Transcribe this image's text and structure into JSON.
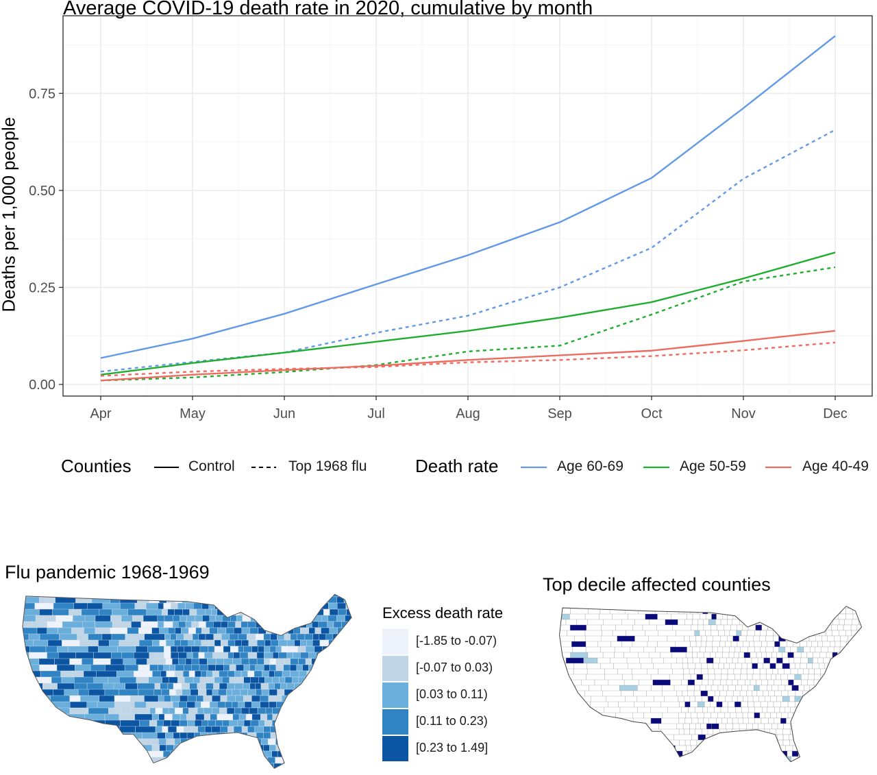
{
  "chart_data": [
    {
      "type": "line",
      "title": "Average COVID-19 death rate in 2020, cumulative by month",
      "xlabel": "",
      "ylabel": "Deaths per 1,000 people",
      "categories": [
        "Apr",
        "May",
        "Jun",
        "Jul",
        "Aug",
        "Sep",
        "Oct",
        "Nov",
        "Dec"
      ],
      "ylim": [
        -0.03,
        0.95
      ],
      "yticks": [
        0.0,
        0.25,
        0.5,
        0.75
      ],
      "ytick_labels": [
        "0.00",
        "0.25",
        "0.50",
        "0.75"
      ],
      "grid": true,
      "legend_position": "bottom",
      "legend": {
        "linetype_title": "Counties",
        "linetype_entries": [
          {
            "label": "Control",
            "dash": "solid"
          },
          {
            "label": "Top 1968 flu",
            "dash": "dashed"
          }
        ],
        "color_title": "Death rate",
        "color_entries": [
          {
            "label": "Age 60-69",
            "color": "#6199e8"
          },
          {
            "label": "Age 50-59",
            "color": "#1fad2d"
          },
          {
            "label": "Age 40-49",
            "color": "#ee6b60"
          }
        ]
      },
      "series": [
        {
          "age": "Age 60-69",
          "counties": "Control",
          "color": "#6199e8",
          "dash": "solid",
          "values": [
            0.068,
            0.118,
            0.182,
            0.258,
            0.333,
            0.418,
            0.532,
            0.712,
            0.898
          ]
        },
        {
          "age": "Age 60-69",
          "counties": "Top 1968 flu",
          "color": "#6199e8",
          "dash": "dashed",
          "values": [
            0.033,
            0.058,
            0.082,
            0.133,
            0.177,
            0.25,
            0.352,
            0.53,
            0.656
          ]
        },
        {
          "age": "Age 50-59",
          "counties": "Control",
          "color": "#1fad2d",
          "dash": "solid",
          "values": [
            0.025,
            0.055,
            0.082,
            0.11,
            0.138,
            0.172,
            0.212,
            0.273,
            0.34
          ]
        },
        {
          "age": "Age 50-59",
          "counties": "Top 1968 flu",
          "color": "#1fad2d",
          "dash": "dashed",
          "values": [
            0.01,
            0.018,
            0.032,
            0.05,
            0.085,
            0.1,
            0.18,
            0.265,
            0.302
          ]
        },
        {
          "age": "Age 40-49",
          "counties": "Control",
          "color": "#ee6b60",
          "dash": "solid",
          "values": [
            0.01,
            0.025,
            0.037,
            0.048,
            0.063,
            0.075,
            0.087,
            0.112,
            0.138
          ]
        },
        {
          "age": "Age 40-49",
          "counties": "Top 1968 flu",
          "color": "#ee6b60",
          "dash": "dashed",
          "values": [
            0.022,
            0.033,
            0.04,
            0.045,
            0.057,
            0.063,
            0.073,
            0.088,
            0.108
          ]
        }
      ]
    },
    {
      "type": "heatmap",
      "title": "Flu pandemic 1968-1969",
      "legend_title": "Excess death rate",
      "bins": [
        {
          "label": "[-1.85 to -0.07)",
          "color": "#eef2fb"
        },
        {
          "label": "[-0.07 to 0.03)",
          "color": "#c0d6e6"
        },
        {
          "label": "[0.03 to 0.11)",
          "color": "#6aaedb"
        },
        {
          "label": "[0.11 to 0.23)",
          "color": "#3184c3"
        },
        {
          "label": "[0.23 to 1.49]",
          "color": "#0b55a3"
        }
      ]
    },
    {
      "type": "heatmap",
      "title": "Top decile affected counties",
      "colors": {
        "highlight": "#0a0a7a",
        "secondary": "#a9cfe2",
        "base": "#ffffff",
        "border": "#666666"
      }
    }
  ]
}
